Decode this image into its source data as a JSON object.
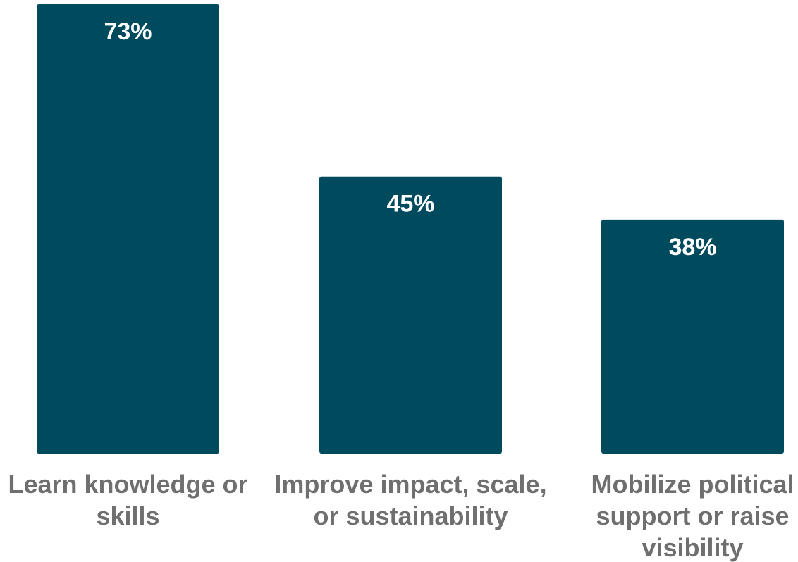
{
  "chart_data": {
    "type": "bar",
    "categories": [
      [
        "Learn knowledge or",
        "skills"
      ],
      [
        "Improve impact, scale,",
        "or sustainability"
      ],
      [
        "Mobilize political",
        "support or raise",
        "visibility"
      ]
    ],
    "values": [
      73,
      45,
      38
    ],
    "value_labels": [
      "73%",
      "45%",
      "38%"
    ],
    "ylim": [
      0,
      73
    ],
    "grid": false,
    "legend": "none",
    "title": "",
    "xlabel": "",
    "ylabel": ""
  },
  "colors": {
    "bar": "#004a5e",
    "label": "#6f6f6f",
    "value_text": "#ffffff",
    "background": "#ffffff"
  }
}
